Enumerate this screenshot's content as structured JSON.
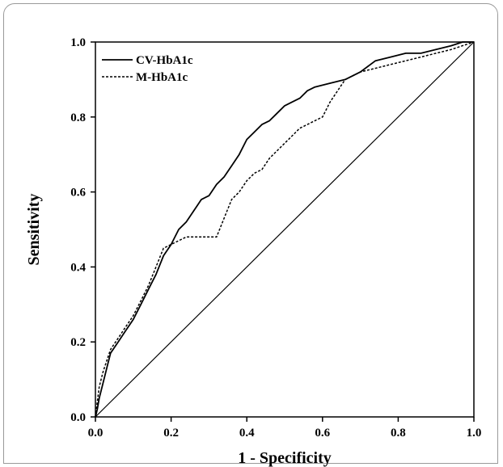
{
  "chart_data": {
    "type": "line",
    "title": "",
    "xlabel": "1 - Specificity",
    "ylabel": "Sensitivity",
    "xlim": [
      0,
      1
    ],
    "ylim": [
      0,
      1
    ],
    "x_ticks": [
      "0.0",
      "0.2",
      "0.4",
      "0.6",
      "0.8",
      "1.0"
    ],
    "y_ticks": [
      "0.0",
      "0.2",
      "0.4",
      "0.6",
      "0.8",
      "1.0"
    ],
    "grid": false,
    "legend_position": "top-left",
    "series": [
      {
        "name": "CV-HbA1c",
        "line_style": "solid",
        "color": "#000000",
        "points": [
          [
            0,
            0
          ],
          [
            0.005,
            0.02
          ],
          [
            0.01,
            0.05
          ],
          [
            0.02,
            0.09
          ],
          [
            0.03,
            0.13
          ],
          [
            0.04,
            0.17
          ],
          [
            0.06,
            0.2
          ],
          [
            0.08,
            0.23
          ],
          [
            0.1,
            0.26
          ],
          [
            0.12,
            0.3
          ],
          [
            0.14,
            0.34
          ],
          [
            0.16,
            0.38
          ],
          [
            0.18,
            0.43
          ],
          [
            0.2,
            0.46
          ],
          [
            0.22,
            0.5
          ],
          [
            0.24,
            0.52
          ],
          [
            0.26,
            0.55
          ],
          [
            0.28,
            0.58
          ],
          [
            0.3,
            0.59
          ],
          [
            0.32,
            0.62
          ],
          [
            0.34,
            0.64
          ],
          [
            0.36,
            0.67
          ],
          [
            0.38,
            0.7
          ],
          [
            0.4,
            0.74
          ],
          [
            0.42,
            0.76
          ],
          [
            0.44,
            0.78
          ],
          [
            0.46,
            0.79
          ],
          [
            0.48,
            0.81
          ],
          [
            0.5,
            0.83
          ],
          [
            0.52,
            0.84
          ],
          [
            0.54,
            0.85
          ],
          [
            0.56,
            0.87
          ],
          [
            0.58,
            0.88
          ],
          [
            0.62,
            0.89
          ],
          [
            0.66,
            0.9
          ],
          [
            0.7,
            0.92
          ],
          [
            0.74,
            0.95
          ],
          [
            0.78,
            0.96
          ],
          [
            0.82,
            0.97
          ],
          [
            0.86,
            0.97
          ],
          [
            0.9,
            0.98
          ],
          [
            0.94,
            0.99
          ],
          [
            0.97,
            1.0
          ],
          [
            1.0,
            1.0
          ]
        ]
      },
      {
        "name": "M-HbA1c",
        "line_style": "dashed",
        "color": "#000000",
        "points": [
          [
            0,
            0
          ],
          [
            0.005,
            0.04
          ],
          [
            0.01,
            0.08
          ],
          [
            0.02,
            0.12
          ],
          [
            0.03,
            0.15
          ],
          [
            0.04,
            0.18
          ],
          [
            0.06,
            0.21
          ],
          [
            0.08,
            0.24
          ],
          [
            0.1,
            0.27
          ],
          [
            0.12,
            0.31
          ],
          [
            0.14,
            0.35
          ],
          [
            0.16,
            0.4
          ],
          [
            0.18,
            0.45
          ],
          [
            0.2,
            0.46
          ],
          [
            0.22,
            0.47
          ],
          [
            0.24,
            0.48
          ],
          [
            0.26,
            0.48
          ],
          [
            0.28,
            0.48
          ],
          [
            0.3,
            0.48
          ],
          [
            0.32,
            0.48
          ],
          [
            0.34,
            0.53
          ],
          [
            0.36,
            0.58
          ],
          [
            0.38,
            0.6
          ],
          [
            0.4,
            0.63
          ],
          [
            0.42,
            0.65
          ],
          [
            0.44,
            0.66
          ],
          [
            0.46,
            0.69
          ],
          [
            0.48,
            0.71
          ],
          [
            0.5,
            0.73
          ],
          [
            0.52,
            0.75
          ],
          [
            0.54,
            0.77
          ],
          [
            0.56,
            0.78
          ],
          [
            0.58,
            0.79
          ],
          [
            0.6,
            0.8
          ],
          [
            0.62,
            0.84
          ],
          [
            0.64,
            0.87
          ],
          [
            0.66,
            0.9
          ],
          [
            0.7,
            0.92
          ],
          [
            0.74,
            0.93
          ],
          [
            0.78,
            0.94
          ],
          [
            0.82,
            0.95
          ],
          [
            0.86,
            0.96
          ],
          [
            0.9,
            0.97
          ],
          [
            0.94,
            0.98
          ],
          [
            0.97,
            0.99
          ],
          [
            1.0,
            1.0
          ]
        ]
      },
      {
        "name": "",
        "line_style": "solid",
        "color": "#000000",
        "points": [
          [
            0,
            0
          ],
          [
            1,
            1
          ]
        ]
      }
    ]
  }
}
